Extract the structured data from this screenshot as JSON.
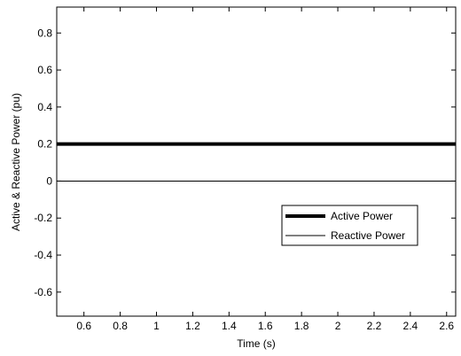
{
  "chart_data": {
    "type": "line",
    "title": "",
    "xlabel": "Time (s)",
    "ylabel": "Active & Reactive Power (pu)",
    "xlim": [
      0.45,
      2.65
    ],
    "ylim": [
      -0.73,
      0.94
    ],
    "x_ticks": [
      0.6,
      0.8,
      1,
      1.2,
      1.4,
      1.6,
      1.8,
      2,
      2.2,
      2.4,
      2.6
    ],
    "y_ticks": [
      -0.6,
      -0.4,
      -0.2,
      0,
      0.2,
      0.4,
      0.6,
      0.8
    ],
    "grid": false,
    "legend_position": "lower-right",
    "series": [
      {
        "name": "Active Power",
        "x": [
          0.45,
          2.65
        ],
        "y": [
          0.2,
          0.2
        ],
        "color": "#000000",
        "style": "thick"
      },
      {
        "name": "Reactive Power",
        "x": [
          0.45,
          2.65
        ],
        "y": [
          0,
          0
        ],
        "color": "#000000",
        "style": "thin"
      }
    ]
  }
}
